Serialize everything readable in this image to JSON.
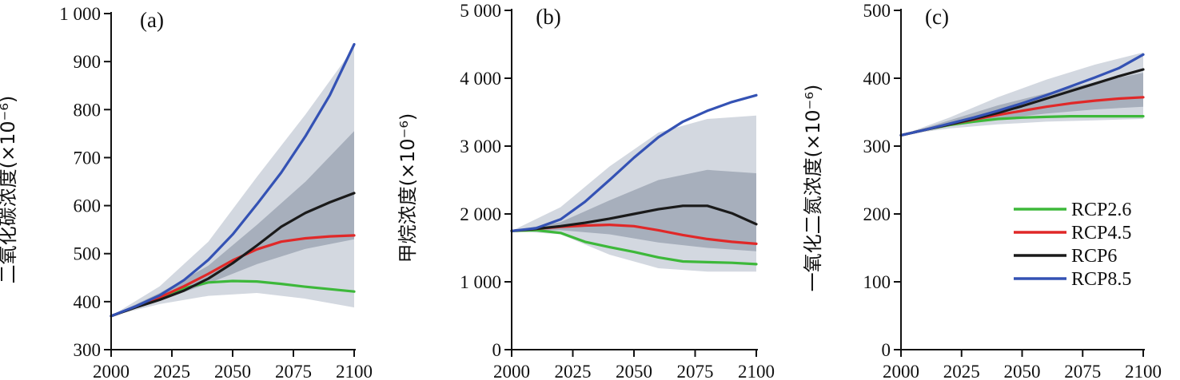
{
  "colors": {
    "RCP2.6": "#3db83a",
    "RCP4.5": "#e02828",
    "RCP6": "#1a1a1a",
    "RCP8.5": "#3452b4",
    "band_outer": "#d3d8e0",
    "band_inner": "#a7afbc"
  },
  "legend": {
    "entries": [
      "RCP2.6",
      "RCP4.5",
      "RCP6",
      "RCP8.5"
    ],
    "placement": "right of panel (c)"
  },
  "chart_data": [
    {
      "type": "line",
      "panel_label": "(a)",
      "title": "",
      "xlabel": "",
      "ylabel": "二氧化碳浓度(×10⁻⁶)",
      "xlim": [
        2000,
        2100
      ],
      "ylim": [
        300,
        1000
      ],
      "x_ticks": [
        2000,
        2025,
        2050,
        2075,
        2100
      ],
      "y_ticks": [
        300,
        400,
        500,
        600,
        700,
        800,
        900,
        1000
      ],
      "y_tick_labels": [
        "300",
        "400",
        "500",
        "600",
        "700",
        "800",
        "900",
        "1 000"
      ],
      "grid": false,
      "series": [
        {
          "name": "RCP2.6",
          "x": [
            2000,
            2010,
            2020,
            2030,
            2040,
            2050,
            2060,
            2070,
            2080,
            2090,
            2100
          ],
          "y": [
            370,
            389,
            408,
            428,
            440,
            443,
            442,
            437,
            431,
            426,
            421
          ]
        },
        {
          "name": "RCP4.5",
          "x": [
            2000,
            2010,
            2020,
            2030,
            2040,
            2050,
            2060,
            2070,
            2080,
            2090,
            2100
          ],
          "y": [
            370,
            389,
            409,
            432,
            458,
            486,
            509,
            525,
            532,
            536,
            538
          ]
        },
        {
          "name": "RCP6",
          "x": [
            2000,
            2010,
            2020,
            2030,
            2040,
            2050,
            2060,
            2070,
            2080,
            2090,
            2100
          ],
          "y": [
            370,
            388,
            404,
            423,
            448,
            480,
            517,
            556,
            585,
            607,
            626
          ]
        },
        {
          "name": "RCP8.5",
          "x": [
            2000,
            2010,
            2020,
            2030,
            2040,
            2050,
            2060,
            2070,
            2080,
            2090,
            2100
          ],
          "y": [
            370,
            390,
            413,
            445,
            487,
            540,
            603,
            669,
            745,
            830,
            936
          ]
        }
      ],
      "bands": [
        {
          "level": "outer",
          "x": [
            2000,
            2020,
            2040,
            2060,
            2080,
            2100
          ],
          "low": [
            370,
            395,
            412,
            418,
            406,
            388
          ],
          "high": [
            370,
            432,
            525,
            660,
            790,
            930
          ]
        },
        {
          "level": "inner",
          "x": [
            2000,
            2020,
            2040,
            2060,
            2080,
            2100
          ],
          "low": [
            370,
            402,
            438,
            478,
            510,
            530
          ],
          "high": [
            370,
            418,
            475,
            560,
            650,
            755
          ]
        }
      ]
    },
    {
      "type": "line",
      "panel_label": "(b)",
      "title": "",
      "xlabel": "",
      "ylabel": "甲烷浓度(×10⁻⁶)",
      "xlim": [
        2000,
        2100
      ],
      "ylim": [
        0,
        5000
      ],
      "x_ticks": [
        2000,
        2025,
        2050,
        2075,
        2100
      ],
      "y_ticks": [
        0,
        1000,
        2000,
        3000,
        4000,
        5000
      ],
      "y_tick_labels": [
        "0",
        "1 000",
        "2 000",
        "3 000",
        "4 000",
        "5 000"
      ],
      "grid": false,
      "series": [
        {
          "name": "RCP2.6",
          "x": [
            2000,
            2010,
            2020,
            2030,
            2040,
            2050,
            2060,
            2070,
            2080,
            2090,
            2100
          ],
          "y": [
            1750,
            1760,
            1720,
            1590,
            1510,
            1440,
            1360,
            1300,
            1290,
            1280,
            1260
          ]
        },
        {
          "name": "RCP4.5",
          "x": [
            2000,
            2010,
            2020,
            2030,
            2040,
            2050,
            2060,
            2070,
            2080,
            2090,
            2100
          ],
          "y": [
            1750,
            1780,
            1810,
            1830,
            1840,
            1820,
            1760,
            1690,
            1630,
            1590,
            1560
          ]
        },
        {
          "name": "RCP6",
          "x": [
            2000,
            2010,
            2020,
            2030,
            2040,
            2050,
            2060,
            2070,
            2080,
            2090,
            2100
          ],
          "y": [
            1750,
            1780,
            1820,
            1870,
            1930,
            2000,
            2070,
            2120,
            2120,
            2010,
            1850
          ]
        },
        {
          "name": "RCP8.5",
          "x": [
            2000,
            2010,
            2020,
            2030,
            2040,
            2050,
            2060,
            2070,
            2080,
            2090,
            2100
          ],
          "y": [
            1750,
            1790,
            1920,
            2180,
            2500,
            2830,
            3130,
            3360,
            3520,
            3650,
            3750
          ]
        }
      ],
      "bands": [
        {
          "level": "outer",
          "x": [
            2000,
            2020,
            2040,
            2060,
            2080,
            2100
          ],
          "low": [
            1750,
            1700,
            1400,
            1200,
            1150,
            1150
          ],
          "high": [
            1750,
            2100,
            2700,
            3200,
            3400,
            3450
          ]
        },
        {
          "level": "inner",
          "x": [
            2000,
            2020,
            2040,
            2060,
            2080,
            2100
          ],
          "low": [
            1750,
            1760,
            1700,
            1580,
            1500,
            1450
          ],
          "high": [
            1750,
            1880,
            2200,
            2500,
            2650,
            2600
          ]
        }
      ]
    },
    {
      "type": "line",
      "panel_label": "(c)",
      "title": "",
      "xlabel": "",
      "ylabel": "一氧化二氮浓度(×10⁻⁶)",
      "xlim": [
        2000,
        2100
      ],
      "ylim": [
        0,
        500
      ],
      "x_ticks": [
        2000,
        2025,
        2050,
        2075,
        2100
      ],
      "y_ticks": [
        0,
        100,
        200,
        300,
        400,
        500
      ],
      "y_tick_labels": [
        "0",
        "100",
        "200",
        "300",
        "400",
        "500"
      ],
      "grid": false,
      "series": [
        {
          "name": "RCP2.6",
          "x": [
            2000,
            2010,
            2020,
            2030,
            2040,
            2050,
            2060,
            2070,
            2080,
            2090,
            2100
          ],
          "y": [
            316,
            324,
            331,
            336,
            340,
            342,
            343,
            344,
            344,
            344,
            344
          ]
        },
        {
          "name": "RCP4.5",
          "x": [
            2000,
            2010,
            2020,
            2030,
            2040,
            2050,
            2060,
            2070,
            2080,
            2090,
            2100
          ],
          "y": [
            316,
            324,
            332,
            339,
            346,
            352,
            358,
            363,
            367,
            370,
            372
          ]
        },
        {
          "name": "RCP6",
          "x": [
            2000,
            2010,
            2020,
            2030,
            2040,
            2050,
            2060,
            2070,
            2080,
            2090,
            2100
          ],
          "y": [
            316,
            324,
            332,
            340,
            349,
            359,
            370,
            381,
            392,
            403,
            413
          ]
        },
        {
          "name": "RCP8.5",
          "x": [
            2000,
            2010,
            2020,
            2030,
            2040,
            2050,
            2060,
            2070,
            2080,
            2090,
            2100
          ],
          "y": [
            316,
            324,
            333,
            342,
            352,
            363,
            375,
            388,
            401,
            415,
            435
          ]
        }
      ],
      "bands": [
        {
          "level": "outer",
          "x": [
            2000,
            2020,
            2040,
            2060,
            2080,
            2100
          ],
          "low": [
            316,
            326,
            332,
            336,
            338,
            340
          ],
          "high": [
            316,
            342,
            372,
            398,
            420,
            438
          ]
        },
        {
          "level": "inner",
          "x": [
            2000,
            2020,
            2040,
            2060,
            2080,
            2100
          ],
          "low": [
            316,
            329,
            340,
            348,
            354,
            358
          ],
          "high": [
            316,
            338,
            360,
            378,
            394,
            408
          ]
        }
      ]
    }
  ]
}
